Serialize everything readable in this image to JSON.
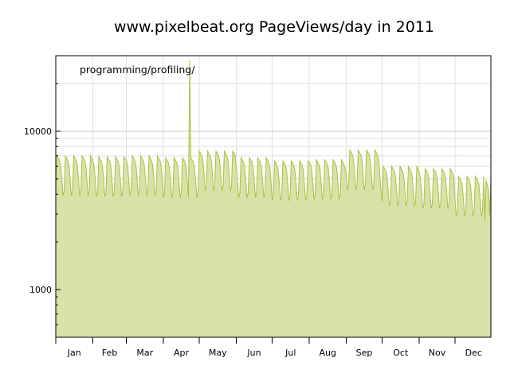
{
  "chart_data": {
    "type": "area",
    "title": "www.pixelbeat.org PageViews/day in 2011",
    "annotation": "programming/profiling/",
    "xlabel": "",
    "ylabel": "",
    "y_scale": "log",
    "ylim": [
      500,
      30000
    ],
    "y_ticks": [
      1000,
      10000
    ],
    "y_tick_labels": [
      "1000",
      "10000"
    ],
    "x_tick_labels": [
      "Jan",
      "Feb",
      "Mar",
      "Apr",
      "May",
      "Jun",
      "Jul",
      "Aug",
      "Sep",
      "Oct",
      "Nov",
      "Dec"
    ],
    "grid": true,
    "legend": "none",
    "colors": {
      "line": "#a8c241",
      "fill": "#d8e2a8"
    },
    "weekly_pattern": [
      1.0,
      0.97,
      0.94,
      0.88,
      0.72,
      0.56,
      0.6
    ],
    "months": [
      {
        "name": "Jan",
        "weekday_peak": 7000
      },
      {
        "name": "Feb",
        "weekday_peak": 6900
      },
      {
        "name": "Mar",
        "weekday_peak": 7000
      },
      {
        "name": "Apr",
        "weekday_peak": 6800
      },
      {
        "name": "May",
        "weekday_peak": 7500
      },
      {
        "name": "Jun",
        "weekday_peak": 6800
      },
      {
        "name": "Jul",
        "weekday_peak": 6500
      },
      {
        "name": "Aug",
        "weekday_peak": 6600
      },
      {
        "name": "Sep",
        "weekday_peak": 7600
      },
      {
        "name": "Oct",
        "weekday_peak": 6000
      },
      {
        "name": "Nov",
        "weekday_peak": 5800
      },
      {
        "name": "Dec",
        "weekday_peak": 5200
      }
    ],
    "spikes": [
      {
        "date": "2011-04-23",
        "value": 28000
      }
    ],
    "end_values": [
      {
        "date": "2011-12-26",
        "value": 2700
      },
      {
        "date": "2011-12-29",
        "value": 4300
      },
      {
        "date": "2011-12-31",
        "value": 5000
      }
    ]
  }
}
